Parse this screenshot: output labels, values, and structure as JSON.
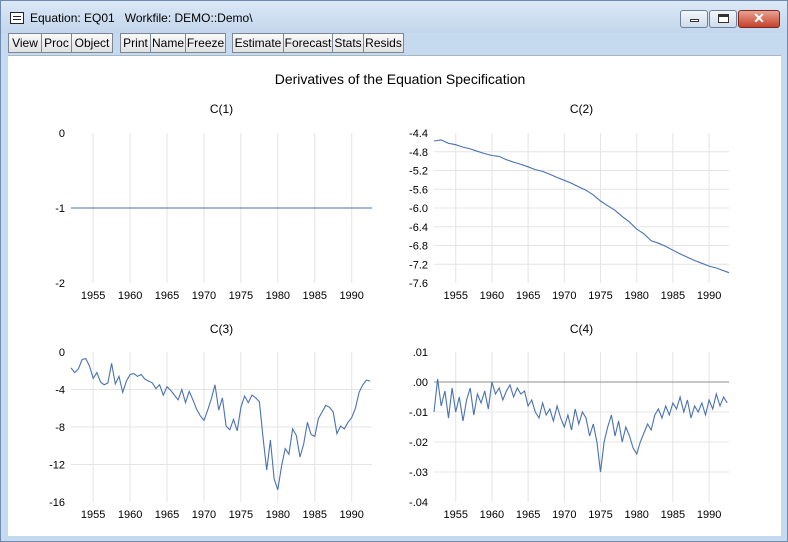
{
  "window": {
    "title": "Equation: EQ01   Workfile: DEMO::Demo\\",
    "title_icon": "window-menu-icon",
    "controls": {
      "minimize": "minimize-icon",
      "maximize": "maximize-icon",
      "close": "close-icon",
      "close_glyph": "✕"
    }
  },
  "toolbar": {
    "buttons": [
      "View",
      "Proc",
      "Object",
      "Print",
      "Name",
      "Freeze",
      "Estimate",
      "Forecast",
      "Stats",
      "Resids"
    ]
  },
  "figure": {
    "title": "Derivatives of the Equation Specification",
    "line_color": "#4a72b0",
    "grid_color": "#e4e4e4"
  },
  "chart_data": [
    {
      "type": "line",
      "title": "C(1)",
      "xlim": [
        1952,
        1992.75
      ],
      "xticks": [
        1955,
        1960,
        1965,
        1970,
        1975,
        1980,
        1985,
        1990
      ],
      "ylim": [
        -2,
        0
      ],
      "yticks": [
        0,
        -1,
        -2
      ],
      "ytick_labels": [
        "0",
        "-1",
        "-2"
      ],
      "grid": true,
      "series": [
        {
          "x": [
            1952,
            1992.75
          ],
          "y": [
            -1,
            -1
          ]
        }
      ]
    },
    {
      "type": "line",
      "title": "C(2)",
      "xlim": [
        1952,
        1992.75
      ],
      "xticks": [
        1955,
        1960,
        1965,
        1970,
        1975,
        1980,
        1985,
        1990
      ],
      "ylim": [
        -7.6,
        -4.4
      ],
      "yticks": [
        -4.4,
        -4.8,
        -5.2,
        -5.6,
        -6.0,
        -6.4,
        -6.8,
        -7.2,
        -7.6
      ],
      "ytick_labels": [
        "-4.4",
        "-4.8",
        "-5.2",
        "-5.6",
        "-6.0",
        "-6.4",
        "-6.8",
        "-7.2",
        "-7.6"
      ],
      "grid": true,
      "series": [
        {
          "x": [
            1952,
            1953,
            1954,
            1955,
            1956,
            1957,
            1958,
            1959,
            1960,
            1961,
            1962,
            1963,
            1964,
            1965,
            1966,
            1967,
            1968,
            1969,
            1970,
            1971,
            1972,
            1973,
            1974,
            1975,
            1976,
            1977,
            1978,
            1979,
            1980,
            1981,
            1982,
            1983,
            1984,
            1985,
            1986,
            1987,
            1988,
            1989,
            1990,
            1991,
            1992.75
          ],
          "y": [
            -4.57,
            -4.55,
            -4.62,
            -4.65,
            -4.7,
            -4.74,
            -4.79,
            -4.84,
            -4.88,
            -4.9,
            -4.97,
            -5.02,
            -5.07,
            -5.12,
            -5.18,
            -5.22,
            -5.28,
            -5.35,
            -5.41,
            -5.47,
            -5.55,
            -5.62,
            -5.72,
            -5.85,
            -5.95,
            -6.05,
            -6.18,
            -6.3,
            -6.45,
            -6.55,
            -6.7,
            -6.75,
            -6.82,
            -6.9,
            -6.98,
            -7.05,
            -7.12,
            -7.18,
            -7.24,
            -7.28,
            -7.38
          ]
        }
      ]
    },
    {
      "type": "line",
      "title": "C(3)",
      "xlim": [
        1952,
        1992.75
      ],
      "xticks": [
        1955,
        1960,
        1965,
        1970,
        1975,
        1980,
        1985,
        1990
      ],
      "ylim": [
        -16,
        0
      ],
      "yticks": [
        0,
        -4,
        -8,
        -12,
        -16
      ],
      "ytick_labels": [
        "0",
        "-4",
        "-8",
        "-12",
        "-16"
      ],
      "grid": true,
      "series": [
        {
          "x": [
            1952,
            1952.5,
            1953,
            1953.5,
            1954,
            1954.5,
            1955,
            1955.5,
            1956,
            1956.5,
            1957,
            1957.5,
            1958,
            1958.5,
            1959,
            1959.5,
            1960,
            1960.5,
            1961,
            1961.5,
            1962,
            1962.5,
            1963,
            1963.5,
            1964,
            1964.5,
            1965,
            1965.5,
            1966,
            1966.5,
            1967,
            1967.5,
            1968,
            1968.5,
            1969,
            1969.5,
            1970,
            1970.5,
            1971,
            1971.5,
            1972,
            1972.5,
            1973,
            1973.5,
            1974,
            1974.5,
            1975,
            1975.5,
            1976,
            1976.5,
            1977,
            1977.5,
            1978,
            1978.5,
            1979,
            1979.5,
            1980,
            1980.5,
            1981,
            1981.5,
            1982,
            1982.5,
            1983,
            1983.5,
            1984,
            1984.5,
            1985,
            1985.5,
            1986,
            1986.5,
            1987,
            1987.5,
            1988,
            1988.5,
            1989,
            1989.5,
            1990,
            1990.5,
            1991,
            1991.5,
            1992,
            1992.5
          ],
          "y": [
            -1.7,
            -2.2,
            -1.8,
            -0.8,
            -0.7,
            -1.5,
            -2.8,
            -2.2,
            -3.2,
            -3.5,
            -3.3,
            -1.2,
            -3.4,
            -2.6,
            -4.3,
            -3.1,
            -2.4,
            -2.3,
            -2.6,
            -2.4,
            -2.9,
            -3.1,
            -3.3,
            -3.9,
            -3.5,
            -4.6,
            -3.7,
            -4.1,
            -4.6,
            -5.1,
            -4.0,
            -5.4,
            -4.2,
            -5.1,
            -6.1,
            -6.8,
            -7.3,
            -6.2,
            -5.0,
            -3.5,
            -6.2,
            -4.9,
            -7.9,
            -8.3,
            -7.2,
            -8.4,
            -5.9,
            -4.7,
            -5.4,
            -4.6,
            -4.9,
            -5.3,
            -9.1,
            -12.6,
            -9.4,
            -13.5,
            -14.7,
            -12.2,
            -10.3,
            -10.9,
            -8.2,
            -8.9,
            -11.2,
            -9.8,
            -7.5,
            -8.8,
            -9.0,
            -7.1,
            -6.4,
            -5.7,
            -5.9,
            -6.4,
            -8.7,
            -7.9,
            -8.2,
            -7.5,
            -7.0,
            -6.0,
            -4.3,
            -3.5,
            -3.0,
            -3.1
          ]
        }
      ]
    },
    {
      "type": "line",
      "title": "C(4)",
      "xlim": [
        1952,
        1992.75
      ],
      "xticks": [
        1955,
        1960,
        1965,
        1970,
        1975,
        1980,
        1985,
        1990
      ],
      "ylim": [
        -0.04,
        0.01
      ],
      "yticks": [
        0.01,
        0,
        -0.01,
        -0.02,
        -0.03,
        -0.04
      ],
      "ytick_labels": [
        ".01",
        ".00",
        "-.01",
        "-.02",
        "-.03",
        "-.04"
      ],
      "grid": true,
      "zero_line": true,
      "series": [
        {
          "x": [
            1952,
            1952.5,
            1953,
            1953.5,
            1954,
            1954.5,
            1955,
            1955.5,
            1956,
            1956.5,
            1957,
            1957.5,
            1958,
            1958.5,
            1959,
            1959.5,
            1960,
            1960.5,
            1961,
            1961.5,
            1962,
            1962.5,
            1963,
            1963.5,
            1964,
            1964.5,
            1965,
            1965.5,
            1966,
            1966.5,
            1967,
            1967.5,
            1968,
            1968.5,
            1969,
            1969.5,
            1970,
            1970.5,
            1971,
            1971.5,
            1972,
            1972.5,
            1973,
            1973.5,
            1974,
            1974.5,
            1975,
            1975.5,
            1976,
            1976.5,
            1977,
            1977.5,
            1978,
            1978.5,
            1979,
            1979.5,
            1980,
            1980.5,
            1981,
            1981.5,
            1982,
            1982.5,
            1983,
            1983.5,
            1984,
            1984.5,
            1985,
            1985.5,
            1986,
            1986.5,
            1987,
            1987.5,
            1988,
            1988.5,
            1989,
            1989.5,
            1990,
            1990.5,
            1991,
            1991.5,
            1992,
            1992.5
          ],
          "y": [
            -0.01,
            0.001,
            -0.008,
            -0.003,
            -0.012,
            -0.002,
            -0.01,
            -0.005,
            -0.013,
            -0.006,
            -0.002,
            -0.011,
            -0.004,
            -0.007,
            -0.003,
            -0.009,
            0.0,
            -0.004,
            -0.002,
            -0.006,
            -0.003,
            -0.001,
            -0.005,
            -0.002,
            -0.004,
            -0.003,
            -0.008,
            -0.006,
            -0.01,
            -0.012,
            -0.007,
            -0.011,
            -0.009,
            -0.013,
            -0.008,
            -0.012,
            -0.015,
            -0.011,
            -0.016,
            -0.009,
            -0.014,
            -0.01,
            -0.012,
            -0.018,
            -0.014,
            -0.02,
            -0.03,
            -0.02,
            -0.015,
            -0.011,
            -0.018,
            -0.013,
            -0.02,
            -0.015,
            -0.018,
            -0.022,
            -0.024,
            -0.02,
            -0.017,
            -0.014,
            -0.016,
            -0.011,
            -0.009,
            -0.012,
            -0.008,
            -0.011,
            -0.007,
            -0.009,
            -0.005,
            -0.01,
            -0.006,
            -0.012,
            -0.008,
            -0.01,
            -0.007,
            -0.011,
            -0.006,
            -0.009,
            -0.004,
            -0.008,
            -0.005,
            -0.007
          ]
        }
      ]
    }
  ]
}
